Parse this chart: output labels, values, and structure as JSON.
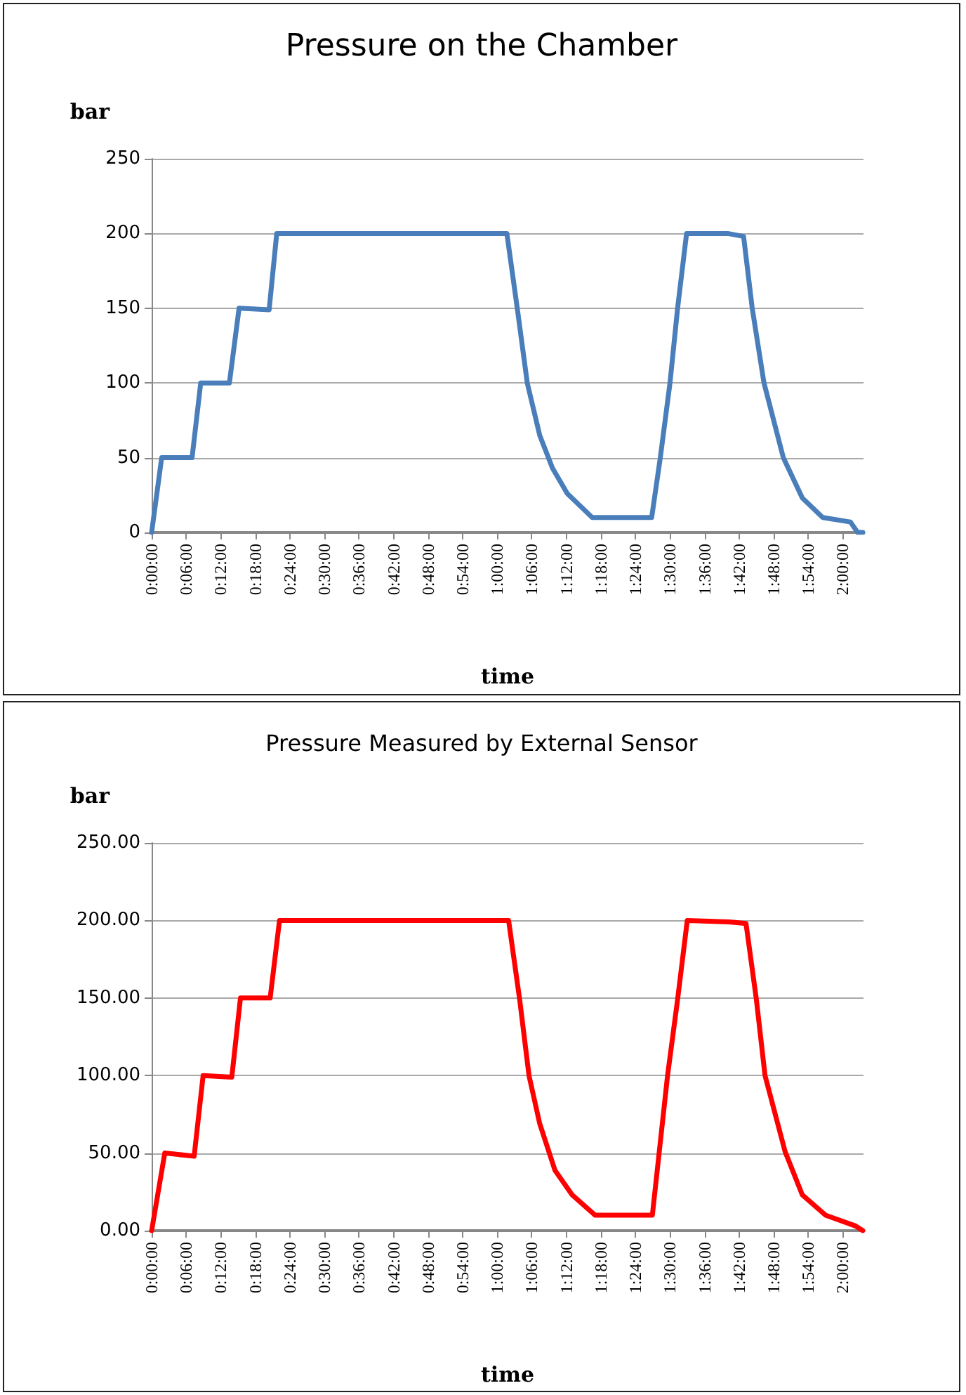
{
  "chart_data": [
    {
      "type": "line",
      "title": "Pressure on the Chamber",
      "xlabel": "time",
      "ylabel": "bar",
      "xlim": [
        0,
        2.06
      ],
      "ylim": [
        0,
        250
      ],
      "yticks": [
        0,
        50,
        100,
        150,
        200,
        250
      ],
      "xticks": [
        {
          "value": 0,
          "label": "0:00:00"
        },
        {
          "value": 0.1,
          "label": "0:06:00"
        },
        {
          "value": 0.2,
          "label": "0:12:00"
        },
        {
          "value": 0.3,
          "label": "0:18:00"
        },
        {
          "value": 0.4,
          "label": "0:24:00"
        },
        {
          "value": 0.5,
          "label": "0:30:00"
        },
        {
          "value": 0.6,
          "label": "0:36:00"
        },
        {
          "value": 0.7,
          "label": "0:42:00"
        },
        {
          "value": 0.8,
          "label": "0:48:00"
        },
        {
          "value": 0.9,
          "label": "0:54:00"
        },
        {
          "value": 1,
          "label": "1:00:00"
        },
        {
          "value": 1.1,
          "label": "1:06:00"
        },
        {
          "value": 1.2,
          "label": "1:12:00"
        },
        {
          "value": 1.3,
          "label": "1:18:00"
        },
        {
          "value": 1.4,
          "label": "1:24:00"
        },
        {
          "value": 1.5,
          "label": "1:30:00"
        },
        {
          "value": 1.6,
          "label": "1:36:00"
        },
        {
          "value": 1.7,
          "label": "1:42:00"
        },
        {
          "value": 1.8,
          "label": "1:48:00"
        },
        {
          "value": 1.9,
          "label": "1:54:00"
        },
        {
          "value": 2,
          "label": "2:00:00"
        }
      ],
      "grid": "y",
      "marker": "none",
      "line_style": "solid",
      "x": [
        0,
        0.029,
        0.117,
        0.142,
        0.225,
        0.253,
        0.34,
        0.362,
        1.028,
        1.058,
        1.087,
        1.123,
        1.16,
        1.203,
        1.275,
        1.447,
        1.472,
        1.5,
        1.522,
        1.548,
        1.667,
        1.713,
        1.738,
        1.772,
        1.828,
        1.883,
        1.942,
        2.022,
        2.043,
        2.058
      ],
      "series": [
        {
          "color": "#4a7ebb",
          "values": [
            0,
            50,
            50,
            100,
            100,
            150,
            149,
            200,
            200,
            150,
            100,
            65,
            43,
            26,
            10,
            10,
            50,
            100,
            150,
            200,
            200,
            198,
            150,
            100,
            50,
            23,
            10,
            7,
            0,
            0
          ]
        }
      ]
    },
    {
      "type": "line",
      "title": "Pressure Measured by External Sensor",
      "xlabel": "time",
      "ylabel": "bar",
      "xlim": [
        0,
        2.06
      ],
      "ylim": [
        0,
        250
      ],
      "yticks": [
        {
          "value": 0,
          "label": "0.00"
        },
        {
          "value": 50,
          "label": "50.00"
        },
        {
          "value": 100,
          "label": "100.00"
        },
        {
          "value": 150,
          "label": "150.00"
        },
        {
          "value": 200,
          "label": "200.00"
        },
        {
          "value": 250,
          "label": "250.00"
        }
      ],
      "xticks": [
        {
          "value": 0,
          "label": "0:00:00"
        },
        {
          "value": 0.1,
          "label": "0:06:00"
        },
        {
          "value": 0.2,
          "label": "0:12:00"
        },
        {
          "value": 0.3,
          "label": "0:18:00"
        },
        {
          "value": 0.4,
          "label": "0:24:00"
        },
        {
          "value": 0.5,
          "label": "0:30:00"
        },
        {
          "value": 0.6,
          "label": "0:36:00"
        },
        {
          "value": 0.7,
          "label": "0:42:00"
        },
        {
          "value": 0.8,
          "label": "0:48:00"
        },
        {
          "value": 0.9,
          "label": "0:54:00"
        },
        {
          "value": 1,
          "label": "1:00:00"
        },
        {
          "value": 1.1,
          "label": "1:06:00"
        },
        {
          "value": 1.2,
          "label": "1:12:00"
        },
        {
          "value": 1.3,
          "label": "1:18:00"
        },
        {
          "value": 1.4,
          "label": "1:24:00"
        },
        {
          "value": 1.5,
          "label": "1:30:00"
        },
        {
          "value": 1.6,
          "label": "1:36:00"
        },
        {
          "value": 1.7,
          "label": "1:42:00"
        },
        {
          "value": 1.8,
          "label": "1:48:00"
        },
        {
          "value": 1.9,
          "label": "1:54:00"
        },
        {
          "value": 2,
          "label": "2:00:00"
        }
      ],
      "grid": "y",
      "marker": "none",
      "line_style": "solid",
      "x": [
        0,
        0.038,
        0.123,
        0.149,
        0.232,
        0.257,
        0.343,
        0.37,
        1.033,
        1.065,
        1.092,
        1.123,
        1.167,
        1.217,
        1.283,
        1.449,
        1.493,
        1.522,
        1.55,
        1.672,
        1.72,
        1.75,
        1.775,
        1.833,
        1.883,
        1.95,
        2.037,
        2.058
      ],
      "series": [
        {
          "color": "#ff0000",
          "values": [
            0,
            50,
            48,
            100,
            99,
            150,
            150,
            200,
            200,
            149,
            100,
            69,
            39,
            23,
            10,
            10,
            100,
            149,
            200,
            199,
            198,
            149,
            100,
            51,
            23,
            10,
            3,
            0
          ]
        }
      ]
    }
  ]
}
